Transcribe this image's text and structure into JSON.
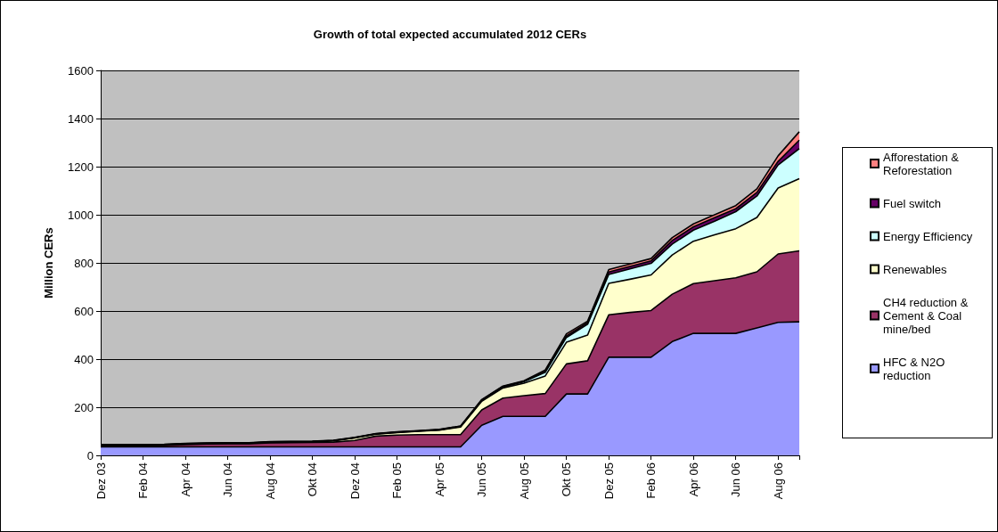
{
  "chart_data": {
    "type": "area",
    "title": "Growth of total expected accumulated 2012 CERs",
    "ylabel": "Million CERs",
    "categories": [
      "Dez 03",
      null,
      "Feb 04",
      null,
      "Apr 04",
      null,
      "Jun 04",
      null,
      "Aug 04",
      null,
      "Okt 04",
      null,
      "Dez 04",
      null,
      "Feb 05",
      null,
      "Apr 05",
      null,
      "Jun 05",
      null,
      "Aug 05",
      null,
      "Okt 05",
      null,
      "Dez 05",
      null,
      "Feb 06",
      null,
      "Apr 06",
      null,
      "Jun 06",
      null,
      "Aug 06",
      null
    ],
    "stacked": true,
    "ylim": [
      0,
      1600
    ],
    "yticks": [
      0,
      200,
      400,
      600,
      800,
      1000,
      1200,
      1400,
      1600
    ],
    "grid": "y",
    "legend": "right",
    "marker": "none",
    "series": [
      {
        "name": "HFC & N2O reduction",
        "color": "#9999ff",
        "values": [
          35,
          35,
          35,
          35,
          35,
          35,
          35,
          35,
          35,
          35,
          35,
          35,
          35,
          35,
          35,
          35,
          35,
          35,
          125,
          162,
          162,
          162,
          255,
          255,
          408,
          408,
          408,
          473,
          507,
          507,
          507,
          530,
          553,
          555
        ]
      },
      {
        "name": "CH4 reduction & Cement & Coal mine/bed",
        "color": "#993366",
        "values": [
          5,
          5,
          5,
          6,
          10,
          12,
          13,
          13,
          17,
          18,
          19,
          20,
          27,
          45,
          49,
          51,
          51,
          51,
          64,
          76,
          86,
          95,
          125,
          138,
          176,
          186,
          194,
          197,
          207,
          219,
          231,
          233,
          284,
          295
        ]
      },
      {
        "name": "Renewables",
        "color": "#ffffcc",
        "values": [
          2,
          2,
          2,
          2,
          2,
          2,
          2,
          2,
          2,
          2,
          2,
          5,
          10,
          8,
          11,
          14,
          19,
          32,
          36,
          42,
          52,
          73,
          90,
          107,
          131,
          138,
          148,
          163,
          176,
          191,
          204,
          226,
          274,
          300
        ]
      },
      {
        "name": "Energy Efficiency",
        "color": "#ccffff",
        "values": [
          1,
          1,
          1,
          1,
          1,
          1,
          1,
          1,
          1,
          1,
          1,
          1,
          1,
          1,
          1,
          1,
          1,
          2,
          3,
          4,
          6,
          15,
          20,
          45,
          37,
          43,
          48,
          45,
          46,
          56,
          71,
          89,
          96,
          125
        ]
      },
      {
        "name": "Fuel switch",
        "color": "#660066",
        "values": [
          1,
          1,
          1,
          1,
          1,
          1,
          1,
          1,
          1,
          1,
          1,
          1,
          1,
          1,
          1,
          1,
          1,
          1,
          2,
          2,
          2,
          5,
          7,
          7,
          10,
          10,
          10,
          15,
          14,
          15,
          12,
          15,
          15,
          35
        ]
      },
      {
        "name": "Afforestation & Reforestation",
        "color": "#ff8080",
        "values": [
          1,
          1,
          1,
          1,
          1,
          1,
          1,
          1,
          1,
          1,
          1,
          1,
          1,
          1,
          1,
          1,
          1,
          1,
          2,
          2,
          2,
          5,
          8,
          6,
          10,
          10,
          10,
          12,
          12,
          12,
          13,
          15,
          23,
          35
        ]
      }
    ]
  }
}
